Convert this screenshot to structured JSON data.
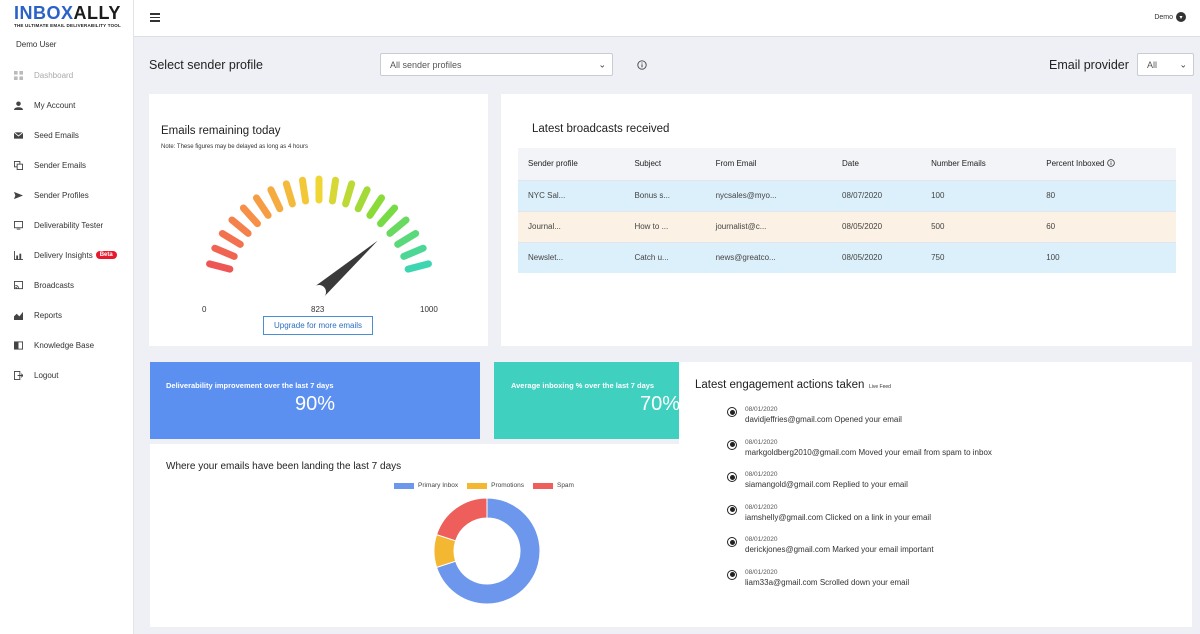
{
  "brand": {
    "name_part1": "INBOX",
    "name_part2": "ALLY",
    "tagline": "THE ULTIMATE EMAIL DELIVERABILITY TOOL"
  },
  "user": {
    "name": "Demo User"
  },
  "topbar": {
    "account_label": "Demo"
  },
  "sidebar": {
    "items": [
      {
        "label": "Dashboard",
        "icon": "dashboard-icon"
      },
      {
        "label": "My Account",
        "icon": "person-icon"
      },
      {
        "label": "Seed Emails",
        "icon": "envelope-icon"
      },
      {
        "label": "Sender Emails",
        "icon": "copy-icon"
      },
      {
        "label": "Sender Profiles",
        "icon": "send-icon"
      },
      {
        "label": "Deliverability Tester",
        "icon": "monitor-icon"
      },
      {
        "label": "Delivery Insights",
        "icon": "bar-chart-icon",
        "badge": "Beta"
      },
      {
        "label": "Broadcasts",
        "icon": "cast-icon"
      },
      {
        "label": "Reports",
        "icon": "area-chart-icon"
      },
      {
        "label": "Knowledge Base",
        "icon": "book-icon"
      },
      {
        "label": "Logout",
        "icon": "logout-icon"
      }
    ]
  },
  "filters": {
    "sender_profile_label": "Select sender profile",
    "sender_profile_value": "All sender profiles",
    "email_provider_label": "Email provider",
    "email_provider_value": "All"
  },
  "gauge": {
    "title": "Emails remaining today",
    "note": "Note: These figures may be delayed as long as 4 hours",
    "min": "0",
    "value": "823",
    "max": "1000",
    "value_fraction": 0.823,
    "button": "Upgrade for more emails"
  },
  "broadcasts": {
    "title": "Latest broadcasts received",
    "columns": [
      "Sender profile",
      "Subject",
      "From Email",
      "Date",
      "Number Emails",
      "Percent Inboxed"
    ],
    "rows": [
      [
        "NYC Sal...",
        "Bonus s...",
        "nycsales@myo...",
        "08/07/2020",
        "100",
        "80"
      ],
      [
        "Journal...",
        "How to ...",
        "journalist@c...",
        "08/05/2020",
        "500",
        "60"
      ],
      [
        "Newslet...",
        "Catch u...",
        "news@greatco...",
        "08/05/2020",
        "750",
        "100"
      ]
    ]
  },
  "stats": {
    "deliverability_label": "Deliverability improvement over the last 7 days",
    "deliverability_value": "90%",
    "inboxing_label": "Average inboxing % over the last 7 days",
    "inboxing_value": "70%"
  },
  "landing": {
    "title": "Where your emails have been landing the last 7 days",
    "legend": [
      {
        "name": "Primary Inbox",
        "color": "#6d97ec"
      },
      {
        "name": "Promotions",
        "color": "#f4b731"
      },
      {
        "name": "Spam",
        "color": "#ee5f5b"
      }
    ]
  },
  "chart_data": {
    "type": "pie",
    "categories": [
      "Primary Inbox",
      "Promotions",
      "Spam"
    ],
    "values": [
      70,
      10,
      20
    ],
    "title": "Where your emails have been landing the last 7 days",
    "legend_position": "top"
  },
  "engagement": {
    "title": "Latest engagement actions taken",
    "live_feed": "Live Feed",
    "items": [
      {
        "date": "08/01/2020",
        "text": "davidjeffries@gmail.com Opened your email"
      },
      {
        "date": "08/01/2020",
        "text": "markgoldberg2010@gmail.com Moved your email from spam to inbox"
      },
      {
        "date": "08/01/2020",
        "text": "siamangold@gmail.com Replied to your email"
      },
      {
        "date": "08/01/2020",
        "text": "iamshelly@gmail.com Clicked on a link in your email"
      },
      {
        "date": "08/01/2020",
        "text": "derickjones@gmail.com Marked your email important"
      },
      {
        "date": "08/01/2020",
        "text": "liam33a@gmail.com Scrolled down your email"
      }
    ]
  }
}
